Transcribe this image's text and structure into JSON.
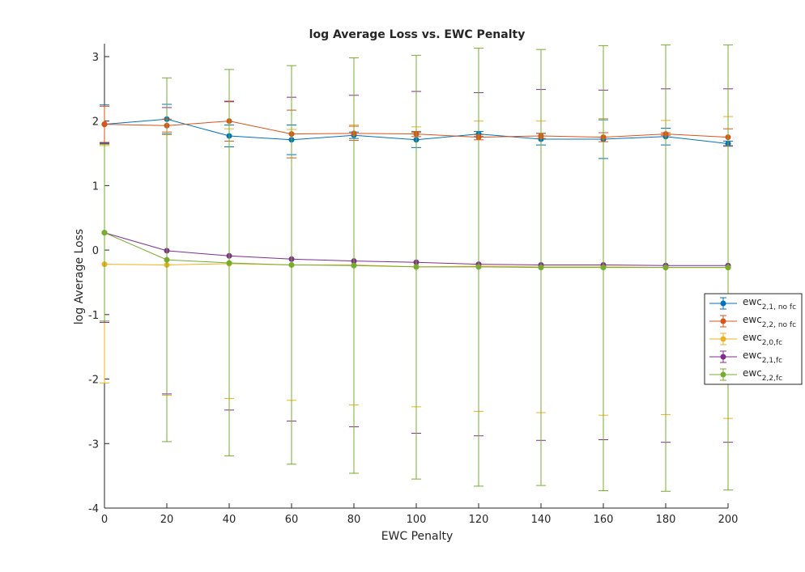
{
  "chart_data": {
    "type": "line",
    "title": "log Average Loss vs. EWC Penalty",
    "xlabel": "EWC Penalty",
    "ylabel": "log Average Loss",
    "xlim": [
      0,
      200
    ],
    "ylim": [
      -4,
      3.2
    ],
    "xticks": [
      "0",
      "20",
      "40",
      "60",
      "80",
      "100",
      "120",
      "140",
      "160",
      "180",
      "200"
    ],
    "yticks": [
      "3",
      "2",
      "1",
      "0",
      "-1",
      "-2",
      "-3",
      "-4"
    ],
    "grid": false,
    "legend_position": "right",
    "x": [
      0,
      20,
      40,
      60,
      80,
      100,
      120,
      140,
      160,
      180,
      200
    ],
    "series": [
      {
        "name": "ewc",
        "subscript": "2,1, no fc",
        "color": "#0072BD",
        "values": [
          1.95,
          2.03,
          1.77,
          1.71,
          1.78,
          1.71,
          1.8,
          1.72,
          1.72,
          1.76,
          1.65
        ],
        "lower": [
          1.65,
          1.8,
          1.6,
          1.48,
          1.73,
          1.59,
          1.76,
          1.63,
          1.42,
          1.63,
          1.61
        ],
        "upper": [
          2.25,
          2.26,
          1.94,
          1.94,
          1.83,
          1.83,
          1.84,
          1.81,
          2.02,
          1.89,
          1.69
        ]
      },
      {
        "name": "ewc",
        "subscript": "2,2, no fc",
        "color": "#D95319",
        "values": [
          1.95,
          1.93,
          2.0,
          1.8,
          1.81,
          1.8,
          1.75,
          1.77,
          1.75,
          1.8,
          1.75
        ],
        "lower": [
          1.67,
          1.83,
          1.69,
          1.43,
          1.7,
          1.76,
          1.71,
          1.73,
          1.68,
          1.78,
          1.62
        ],
        "upper": [
          2.23,
          2.03,
          2.31,
          2.17,
          1.92,
          1.84,
          1.79,
          1.81,
          1.82,
          1.82,
          1.88
        ]
      },
      {
        "name": "ewc",
        "subscript": "2,0,fc",
        "color": "#EDB120",
        "values": [
          -0.22,
          -0.23,
          -0.21,
          -0.23,
          -0.23,
          -0.26,
          -0.25,
          -0.26,
          -0.26,
          -0.27,
          -0.27
        ],
        "lower": [
          -2.06,
          -2.25,
          -2.3,
          -2.33,
          -2.4,
          -2.43,
          -2.5,
          -2.52,
          -2.56,
          -2.55,
          -2.61
        ],
        "upper": [
          1.62,
          1.79,
          1.88,
          1.87,
          1.94,
          1.91,
          2.0,
          2.0,
          2.04,
          2.01,
          2.07
        ]
      },
      {
        "name": "ewc",
        "subscript": "2,1,fc",
        "color": "#7E2F8E",
        "values": [
          0.27,
          -0.01,
          -0.09,
          -0.14,
          -0.17,
          -0.19,
          -0.22,
          -0.23,
          -0.23,
          -0.24,
          -0.24
        ],
        "lower": [
          -1.12,
          -2.23,
          -2.48,
          -2.65,
          -2.74,
          -2.84,
          -2.88,
          -2.95,
          -2.94,
          -2.98,
          -2.98
        ],
        "upper": [
          1.66,
          2.21,
          2.3,
          2.37,
          2.4,
          2.46,
          2.44,
          2.49,
          2.48,
          2.5,
          2.5
        ]
      },
      {
        "name": "ewc",
        "subscript": "2,2,fc",
        "color": "#77AC30",
        "values": [
          0.27,
          -0.15,
          -0.2,
          -0.23,
          -0.24,
          -0.26,
          -0.26,
          -0.27,
          -0.27,
          -0.27,
          -0.27
        ],
        "lower": [
          -1.1,
          -2.97,
          -3.19,
          -3.32,
          -3.46,
          -3.55,
          -3.66,
          -3.65,
          -3.73,
          -3.74,
          -3.72
        ],
        "upper": [
          1.64,
          2.67,
          2.8,
          2.86,
          2.98,
          3.02,
          3.13,
          3.11,
          3.17,
          3.18,
          3.18
        ]
      }
    ]
  }
}
